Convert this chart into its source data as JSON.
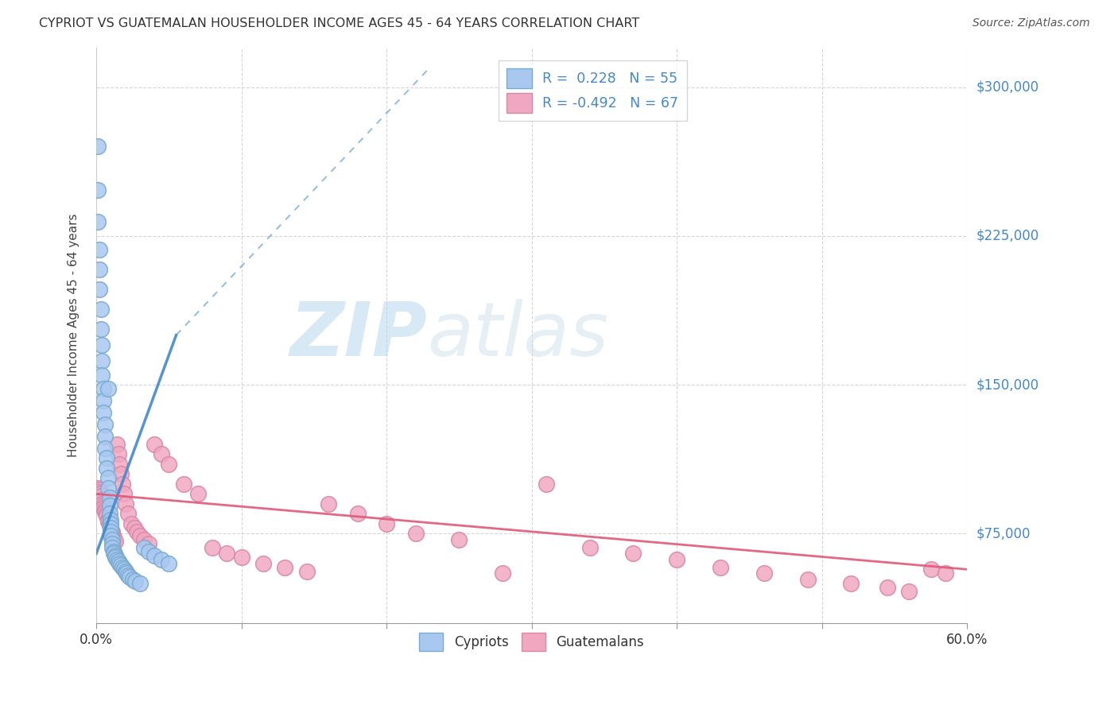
{
  "title": "CYPRIOT VS GUATEMALAN HOUSEHOLDER INCOME AGES 45 - 64 YEARS CORRELATION CHART",
  "source": "Source: ZipAtlas.com",
  "ylabel": "Householder Income Ages 45 - 64 years",
  "xmin": 0.0,
  "xmax": 0.6,
  "ymin": 30000,
  "ymax": 320000,
  "yticks": [
    75000,
    150000,
    225000,
    300000
  ],
  "ytick_labels": [
    "$75,000",
    "$150,000",
    "$225,000",
    "$300,000"
  ],
  "xticks": [
    0.0,
    0.1,
    0.2,
    0.3,
    0.4,
    0.5,
    0.6
  ],
  "xtick_labels": [
    "0.0%",
    "",
    "",
    "",
    "",
    "",
    "60.0%"
  ],
  "cypriot_R": 0.228,
  "cypriot_N": 55,
  "guatemalan_R": -0.492,
  "guatemalan_N": 67,
  "cypriot_color": "#a8c8f0",
  "cypriot_edge_color": "#7aaad0",
  "guatemalan_color": "#f0a8c0",
  "guatemalan_edge_color": "#d888a8",
  "cypriot_line_color": "#4488cc",
  "guatemalan_line_color": "#e05878",
  "legend_color": "#4488cc",
  "watermark_ZIP_color": "#cce4f5",
  "watermark_atlas_color": "#c8dff0",
  "background_color": "#ffffff",
  "grid_color": "#cccccc",
  "cypriot_x": [
    0.001,
    0.001,
    0.001,
    0.002,
    0.002,
    0.002,
    0.003,
    0.003,
    0.004,
    0.004,
    0.004,
    0.005,
    0.005,
    0.005,
    0.006,
    0.006,
    0.006,
    0.007,
    0.007,
    0.008,
    0.008,
    0.008,
    0.009,
    0.009,
    0.009,
    0.01,
    0.01,
    0.01,
    0.01,
    0.01,
    0.011,
    0.011,
    0.011,
    0.012,
    0.012,
    0.013,
    0.013,
    0.014,
    0.015,
    0.016,
    0.017,
    0.018,
    0.019,
    0.02,
    0.021,
    0.022,
    0.023,
    0.025,
    0.027,
    0.03,
    0.033,
    0.036,
    0.04,
    0.045,
    0.05
  ],
  "cypriot_y": [
    270000,
    248000,
    232000,
    218000,
    208000,
    198000,
    188000,
    178000,
    170000,
    162000,
    155000,
    148000,
    142000,
    136000,
    130000,
    124000,
    118000,
    113000,
    108000,
    103000,
    98000,
    148000,
    93000,
    89000,
    85000,
    82000,
    80000,
    78000,
    76000,
    74000,
    72000,
    70000,
    68000,
    66000,
    65000,
    64000,
    63000,
    62000,
    61000,
    60000,
    59000,
    58000,
    57000,
    56000,
    55000,
    54000,
    53000,
    52000,
    51000,
    50000,
    68000,
    66000,
    64000,
    62000,
    60000
  ],
  "guatemalan_x": [
    0.001,
    0.002,
    0.002,
    0.003,
    0.003,
    0.004,
    0.004,
    0.005,
    0.005,
    0.006,
    0.006,
    0.007,
    0.007,
    0.008,
    0.008,
    0.009,
    0.009,
    0.01,
    0.01,
    0.011,
    0.011,
    0.012,
    0.012,
    0.013,
    0.014,
    0.015,
    0.016,
    0.017,
    0.018,
    0.019,
    0.02,
    0.022,
    0.024,
    0.026,
    0.028,
    0.03,
    0.033,
    0.036,
    0.04,
    0.045,
    0.05,
    0.06,
    0.07,
    0.08,
    0.09,
    0.1,
    0.115,
    0.13,
    0.145,
    0.16,
    0.18,
    0.2,
    0.22,
    0.25,
    0.28,
    0.31,
    0.34,
    0.37,
    0.4,
    0.43,
    0.46,
    0.49,
    0.52,
    0.545,
    0.56,
    0.575,
    0.585
  ],
  "guatemalan_y": [
    98000,
    97000,
    96000,
    95000,
    94000,
    92000,
    90000,
    89000,
    88000,
    87000,
    86000,
    85000,
    84000,
    82000,
    81000,
    80000,
    79000,
    78000,
    77000,
    76000,
    75000,
    73000,
    72000,
    71000,
    120000,
    115000,
    110000,
    105000,
    100000,
    95000,
    90000,
    85000,
    80000,
    78000,
    76000,
    74000,
    72000,
    70000,
    120000,
    115000,
    110000,
    100000,
    95000,
    68000,
    65000,
    63000,
    60000,
    58000,
    56000,
    90000,
    85000,
    80000,
    75000,
    72000,
    55000,
    100000,
    68000,
    65000,
    62000,
    58000,
    55000,
    52000,
    50000,
    48000,
    46000,
    57000,
    55000
  ],
  "cyp_trend_x0": 0.0,
  "cyp_trend_y0": 65000,
  "cyp_trend_x1": 0.055,
  "cyp_trend_y1": 175000,
  "cyp_trend_dash_x1": 0.23,
  "cyp_trend_dash_y1": 310000,
  "guat_trend_x0": 0.0,
  "guat_trend_y0": 95000,
  "guat_trend_x1": 0.6,
  "guat_trend_y1": 57000
}
